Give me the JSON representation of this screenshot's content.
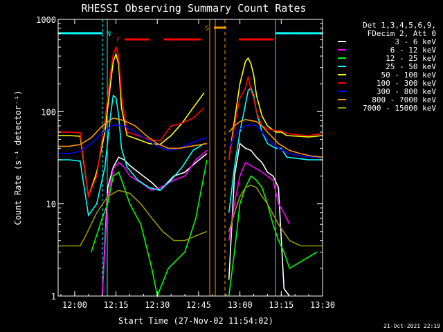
{
  "chart_data": {
    "type": "line",
    "title": "RHESSI Observing Summary Count Rates",
    "xlabel": "Start Time (27-Nov-02 11:54:02)",
    "ylabel": "Count Rate (s⁻¹ detector⁻¹)",
    "ylim": [
      1,
      1000
    ],
    "yscale": "log",
    "xlim_minutes": [
      0,
      96
    ],
    "x_ticks": [
      {
        "t": 6,
        "label": "12:00"
      },
      {
        "t": 21,
        "label": "12:15"
      },
      {
        "t": 36,
        "label": "12:30"
      },
      {
        "t": 51,
        "label": "12:45"
      },
      {
        "t": 66,
        "label": "13:00"
      },
      {
        "t": 81,
        "label": "13:15"
      },
      {
        "t": 96,
        "label": "13:30"
      }
    ],
    "y_ticks": [
      {
        "v": 1,
        "label": "1"
      },
      {
        "v": 10,
        "label": "10"
      },
      {
        "v": 100,
        "label": "100"
      },
      {
        "v": 1000,
        "label": "1000"
      }
    ],
    "legend_header": [
      "Det 1,3,4,5,6,9,",
      "FDecim 2, Att 0"
    ],
    "legend_placement": "right",
    "series": [
      {
        "name": "3 - 6 keV",
        "color": "#ffffff",
        "x": [
          16,
          18,
          20,
          22,
          24,
          26,
          30,
          34,
          37,
          42,
          46,
          50,
          54,
          60,
          62,
          64,
          66,
          68,
          70,
          72,
          74,
          76,
          78,
          80,
          82,
          84
        ],
        "y": [
          1,
          15,
          25,
          32,
          30,
          26,
          21,
          17,
          14,
          20,
          22,
          28,
          35,
          null,
          1.5,
          20,
          45,
          40,
          38,
          32,
          28,
          22,
          20,
          15,
          1.2,
          1
        ]
      },
      {
        "name": "6 - 12 keV",
        "color": "#ff00ff",
        "x": [
          16,
          18,
          20,
          22,
          24,
          26,
          30,
          34,
          37,
          42,
          46,
          50,
          54,
          60,
          62,
          64,
          66,
          68,
          70,
          72,
          74,
          76,
          78,
          80,
          82,
          84
        ],
        "y": [
          1,
          12,
          24,
          28,
          25,
          20,
          17,
          14,
          15,
          18,
          20,
          30,
          38,
          null,
          4,
          10,
          20,
          28,
          26,
          24,
          22,
          20,
          18,
          10,
          8,
          6
        ]
      },
      {
        "name": "12 - 25 keV",
        "color": "#00ff00",
        "x": [
          12,
          16,
          18,
          20,
          22,
          24,
          26,
          30,
          34,
          36,
          40,
          46,
          50,
          54,
          60,
          62,
          64,
          66,
          68,
          70,
          72,
          74,
          76,
          78,
          80,
          82,
          84,
          94
        ],
        "y": [
          3,
          7,
          10,
          20,
          22,
          15,
          10,
          6,
          2,
          1,
          2,
          3,
          7,
          30,
          null,
          1,
          3,
          10,
          15,
          20,
          18,
          15,
          10,
          6,
          4,
          3,
          2,
          3
        ]
      },
      {
        "name": "25 - 50 keV",
        "color": "#00ffff",
        "x": [
          0,
          4,
          8,
          11,
          14,
          17,
          19,
          20,
          21,
          22,
          23,
          25,
          29,
          33,
          37,
          41,
          45,
          49,
          53,
          60,
          62,
          64,
          66,
          68,
          69,
          70,
          71,
          72,
          74,
          76,
          79,
          81,
          83,
          87,
          91,
          96
        ],
        "y": [
          30,
          30,
          29,
          7.5,
          10,
          25,
          90,
          150,
          140,
          90,
          40,
          25,
          18,
          15,
          14,
          18,
          25,
          38,
          45,
          null,
          8,
          25,
          60,
          120,
          170,
          180,
          150,
          100,
          60,
          45,
          40,
          40,
          32,
          31,
          30,
          30
        ]
      },
      {
        "name": "50 - 100 keV",
        "color": "#ffff00",
        "x": [
          0,
          4,
          8,
          11,
          14,
          17,
          19,
          20,
          21,
          22,
          23,
          25,
          29,
          33,
          37,
          41,
          45,
          49,
          53,
          60,
          62,
          64,
          66,
          68,
          69,
          70,
          71,
          72,
          74,
          76,
          79,
          81,
          83,
          87,
          91,
          96
        ],
        "y": [
          55,
          55,
          54,
          12,
          22,
          60,
          200,
          350,
          420,
          320,
          110,
          55,
          50,
          45,
          44,
          55,
          75,
          110,
          160,
          null,
          30,
          80,
          200,
          350,
          380,
          330,
          250,
          150,
          90,
          70,
          60,
          60,
          55,
          54,
          53,
          55
        ]
      },
      {
        "name": "100 - 300 keV",
        "color": "#ff0000",
        "x": [
          0,
          4,
          8,
          11,
          14,
          17,
          19,
          20,
          21,
          22,
          23,
          25,
          29,
          33,
          37,
          41,
          45,
          49,
          53,
          60,
          62,
          64,
          66,
          68,
          69,
          70,
          71,
          72,
          74,
          76,
          79,
          81,
          83,
          87,
          91,
          96
        ],
        "y": [
          60,
          60,
          59,
          12,
          20,
          80,
          260,
          420,
          500,
          400,
          150,
          60,
          55,
          50,
          48,
          70,
          75,
          85,
          110,
          null,
          30,
          70,
          140,
          180,
          240,
          170,
          140,
          100,
          70,
          65,
          62,
          62,
          58,
          56,
          55,
          58
        ]
      },
      {
        "name": "300 - 800 keV",
        "color": "#0000ff",
        "x": [
          0,
          4,
          8,
          12,
          16,
          20,
          24,
          28,
          32,
          36,
          40,
          44,
          48,
          52,
          54,
          60,
          62,
          64,
          66,
          68,
          70,
          72,
          74,
          76,
          80,
          84,
          88,
          92,
          96
        ],
        "y": [
          35,
          35,
          37,
          45,
          58,
          72,
          70,
          60,
          50,
          42,
          38,
          40,
          45,
          50,
          52,
          null,
          40,
          55,
          65,
          70,
          72,
          70,
          60,
          50,
          40,
          35,
          33,
          32,
          32
        ]
      },
      {
        "name": "800 - 7000 keV",
        "color": "#ff9900",
        "x": [
          0,
          4,
          8,
          12,
          16,
          20,
          24,
          28,
          32,
          36,
          40,
          44,
          48,
          52,
          54,
          60,
          62,
          64,
          66,
          68,
          70,
          72,
          74,
          76,
          80,
          84,
          88,
          92,
          96
        ],
        "y": [
          42,
          42,
          44,
          52,
          70,
          85,
          80,
          70,
          55,
          45,
          40,
          40,
          42,
          44,
          45,
          null,
          60,
          70,
          78,
          82,
          80,
          78,
          70,
          60,
          45,
          38,
          35,
          33,
          32
        ]
      },
      {
        "name": "7000 - 15000 keV",
        "color": "#999900",
        "x": [
          0,
          8,
          10,
          14,
          18,
          22,
          26,
          30,
          34,
          38,
          42,
          46,
          50,
          54,
          60,
          62,
          64,
          66,
          68,
          70,
          72,
          74,
          76,
          80,
          84,
          88,
          92,
          96
        ],
        "y": [
          3.5,
          3.5,
          4.5,
          8,
          12,
          14,
          13,
          10,
          7,
          5,
          4,
          4,
          4.5,
          5,
          null,
          5,
          8,
          12,
          15,
          16,
          15,
          12,
          10,
          6,
          4,
          3.5,
          3.5,
          3.5
        ]
      }
    ],
    "annotations": [
      {
        "text": "N",
        "color": "#00ffff"
      },
      {
        "text": "F",
        "color": "#ff0000"
      },
      {
        "text": "S",
        "color": "#ff9900"
      }
    ]
  },
  "footer": {
    "timestamp": "21-Oct-2021 22:19"
  }
}
